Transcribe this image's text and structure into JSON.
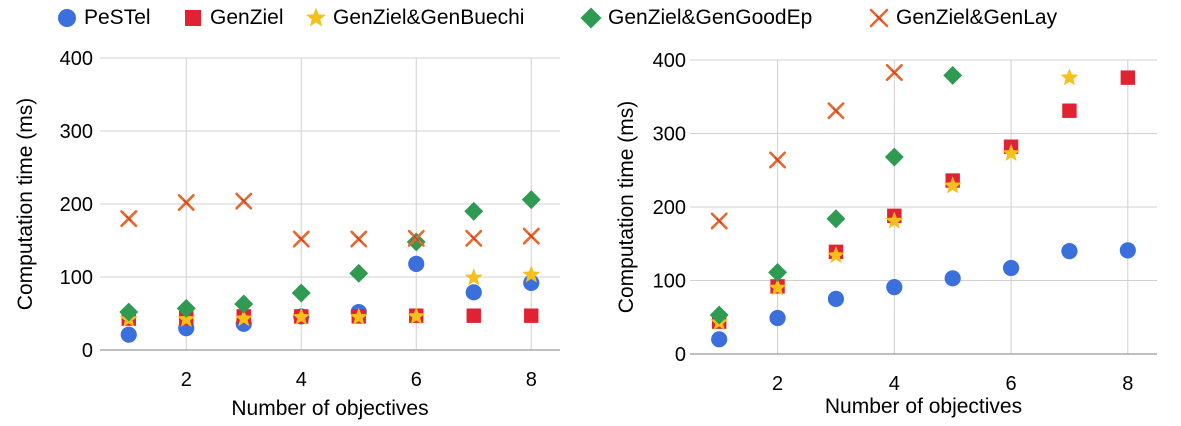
{
  "legend": [
    {
      "name": "PeSTel",
      "color": "#3b6fdc",
      "marker": "circle"
    },
    {
      "name": "GenZiel",
      "color": "#e02232",
      "marker": "square"
    },
    {
      "name": "GenZiel&GenBuechi",
      "color": "#f5c01a",
      "marker": "star"
    },
    {
      "name": "GenZiel&GenGoodEp",
      "color": "#2e9a52",
      "marker": "diamond"
    },
    {
      "name": "GenZiel&GenLay",
      "color": "#e8672c",
      "marker": "cross"
    }
  ],
  "chart_data": [
    {
      "type": "scatter",
      "title": "",
      "xlabel": "Number of objectives",
      "ylabel": "Computation time (ms)",
      "xlim": [
        0.5,
        8.5
      ],
      "ylim": [
        0,
        400
      ],
      "xticks": [
        2,
        4,
        6,
        8
      ],
      "yticks": [
        0,
        100,
        200,
        300,
        400
      ],
      "grid": true,
      "series": [
        {
          "name": "PeSTel",
          "x": [
            1,
            2,
            3,
            4,
            5,
            6,
            7,
            8
          ],
          "y": [
            21,
            30,
            36,
            46,
            52,
            118,
            79,
            92
          ]
        },
        {
          "name": "GenZiel",
          "x": [
            1,
            2,
            3,
            4,
            5,
            6,
            7,
            8
          ],
          "y": [
            43,
            44,
            46,
            46,
            46,
            47,
            47,
            47
          ]
        },
        {
          "name": "GenZiel&GenBuechi",
          "x": [
            1,
            2,
            3,
            4,
            5,
            6,
            7,
            8
          ],
          "y": [
            42,
            42,
            43,
            45,
            45,
            46,
            99,
            103
          ]
        },
        {
          "name": "GenZiel&GenGoodEp",
          "x": [
            1,
            2,
            3,
            4,
            5,
            6,
            7,
            8
          ],
          "y": [
            52,
            57,
            63,
            78,
            105,
            148,
            190,
            206
          ]
        },
        {
          "name": "GenZiel&GenLay",
          "x": [
            1,
            2,
            3,
            4,
            5,
            6,
            7,
            8
          ],
          "y": [
            180,
            202,
            204,
            152,
            152,
            153,
            153,
            156
          ]
        }
      ]
    },
    {
      "type": "scatter",
      "title": "",
      "xlabel": "Number of objectives",
      "ylabel": "Computation time (ms)",
      "xlim": [
        0.5,
        8.5
      ],
      "ylim": [
        0,
        400
      ],
      "xticks": [
        2,
        4,
        6,
        8
      ],
      "yticks": [
        0,
        100,
        200,
        300,
        400
      ],
      "grid": true,
      "series": [
        {
          "name": "PeSTel",
          "x": [
            1,
            2,
            3,
            4,
            5,
            6,
            7,
            8
          ],
          "y": [
            20,
            49,
            75,
            91,
            103,
            117,
            140,
            141
          ]
        },
        {
          "name": "GenZiel",
          "x": [
            1,
            2,
            3,
            4,
            5,
            6,
            7,
            8
          ],
          "y": [
            44,
            92,
            139,
            188,
            236,
            282,
            331,
            376
          ]
        },
        {
          "name": "GenZiel&GenBuechi",
          "x": [
            1,
            2,
            3,
            4,
            5,
            6,
            7
          ],
          "y": [
            43,
            90,
            134,
            181,
            229,
            273,
            376
          ]
        },
        {
          "name": "GenZiel&GenGoodEp",
          "x": [
            1,
            2,
            3,
            4,
            5
          ],
          "y": [
            53,
            111,
            184,
            268,
            379
          ]
        },
        {
          "name": "GenZiel&GenLay",
          "x": [
            1,
            2,
            3,
            4
          ],
          "y": [
            181,
            264,
            331,
            383
          ]
        }
      ]
    }
  ]
}
